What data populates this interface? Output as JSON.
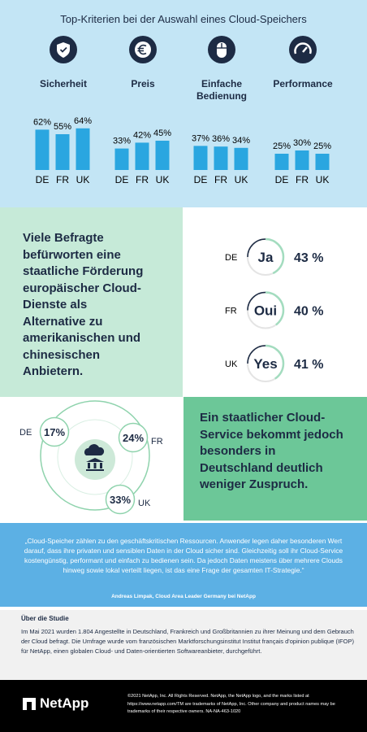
{
  "header": {
    "title": "Top-Kriterien bei der Auswahl eines Cloud-Speichers"
  },
  "chart_data": [
    {
      "type": "bar",
      "title": "Sicherheit",
      "categories": [
        "DE",
        "FR",
        "UK"
      ],
      "values": [
        62,
        55,
        64
      ],
      "value_labels": [
        "62%",
        "55%",
        "64%"
      ],
      "color": "#2aa6e0"
    },
    {
      "type": "bar",
      "title": "Preis",
      "categories": [
        "DE",
        "FR",
        "UK"
      ],
      "values": [
        33,
        42,
        45
      ],
      "value_labels": [
        "33%",
        "42%",
        "45%"
      ],
      "color": "#2aa6e0"
    },
    {
      "type": "bar",
      "title": "Einfache Bedienung",
      "categories": [
        "DE",
        "FR",
        "UK"
      ],
      "values": [
        37,
        36,
        34
      ],
      "value_labels": [
        "37%",
        "36%",
        "34%"
      ],
      "color": "#2aa6e0"
    },
    {
      "type": "bar",
      "title": "Performance",
      "categories": [
        "DE",
        "FR",
        "UK"
      ],
      "values": [
        25,
        30,
        25
      ],
      "value_labels": [
        "25%",
        "30%",
        "25%"
      ],
      "color": "#2aa6e0"
    },
    {
      "type": "donut",
      "categories": [
        "DE",
        "FR",
        "UK"
      ],
      "labels": [
        "Ja",
        "Oui",
        "Yes"
      ],
      "values": [
        43,
        40,
        41
      ],
      "value_labels": [
        "43 %",
        "40 %",
        "41 %"
      ],
      "color": "#a3dcbf"
    },
    {
      "type": "bubble",
      "categories": [
        "DE",
        "FR",
        "UK"
      ],
      "values": [
        17,
        24,
        33
      ],
      "value_labels": [
        "17%",
        "24%",
        "33%"
      ],
      "color": "#8fd3ad"
    }
  ],
  "statements": {
    "support": "Viele Befragte befürworten eine staatliche Förderung europäischer Cloud-Dienste als Alternative zu amerikanischen und chinesischen Anbietern.",
    "service": "Ein staatlicher Cloud-Service bekommt jedoch besonders in Deutschland deutlich weniger Zuspruch."
  },
  "quote": {
    "text": "„Cloud-Speicher zählen zu den geschäftskritischen Ressourcen. Anwender legen daher besonderen Wert darauf, dass ihre privaten und sensiblen Daten in der Cloud sicher sind. Gleichzeitig soll ihr Cloud-Service kostengünstig, performant und einfach zu bedienen sein. Da jedoch Daten meistens über mehrere Clouds hinweg sowie lokal verteilt liegen, ist das eine Frage der gesamten IT-Strategie.“",
    "author": "Andreas Limpak, Cloud Area Leader Germany bei NetApp"
  },
  "study": {
    "title": "Über die Studie",
    "text": "Im Mai 2021 wurden 1.804 Angestellte in Deutschland, Frankreich und Großbritannien zu ihrer Meinung und dem Gebrauch der Cloud befragt. Die Umfrage wurde vom französischen Marktforschungsinstitut Institut français d'opinion publique (IFOP) für NetApp, einen globalen Cloud- und Daten-orientierten Softwareanbieter, durchgeführt."
  },
  "footer": {
    "logo": "NetApp",
    "legal": "©2021 NetApp, Inc. All Rights Reserved. NetApp, the NetApp logo, and the marks listed at https://www.netapp.com/TM are trademarks of NetApp, Inc. Other company and product names may be trademarks of their respective owners. NA-NA-463-1020"
  }
}
